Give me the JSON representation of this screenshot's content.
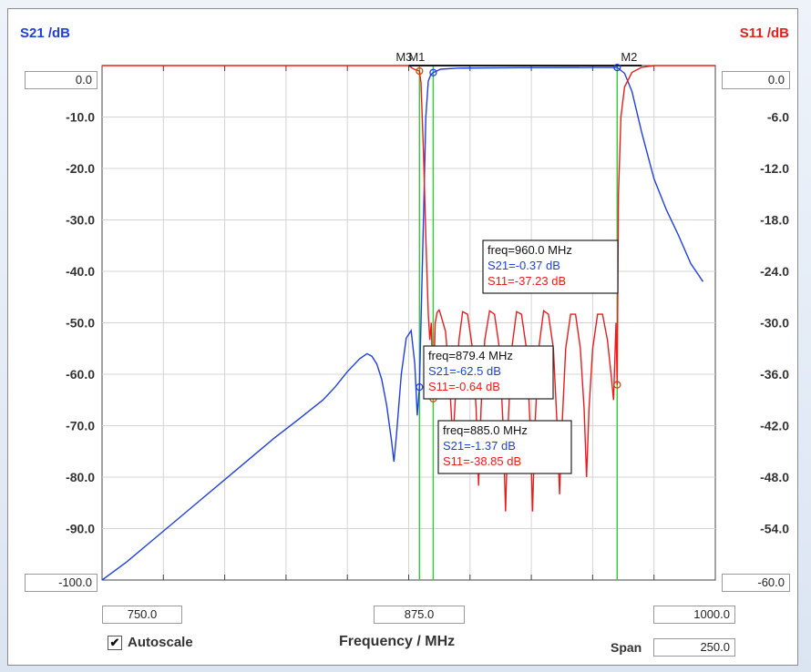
{
  "chart_data": {
    "type": "line",
    "x_axis": {
      "label": "Frequency / MHz",
      "xlim": [
        750.0,
        1000.0
      ],
      "start_value": "750.0",
      "center_value": "875.0",
      "stop_value": "1000.0",
      "span_label": "Span",
      "span_value": "250.0"
    },
    "left_axis": {
      "title": "S21 /dB",
      "ylim": [
        -100,
        0
      ],
      "top_value": "0.0",
      "bottom_value": "-100.0",
      "tick_labels": [
        "-10.0",
        "-20.0",
        "-30.0",
        "-40.0",
        "-50.0",
        "-60.0",
        "-70.0",
        "-80.0",
        "-90.0"
      ]
    },
    "right_axis": {
      "title": "S11 /dB",
      "ylim": [
        -60,
        0
      ],
      "top_value": "0.0",
      "bottom_value": "-60.0",
      "tick_labels": [
        "-6.0",
        "-12.0",
        "-18.0",
        "-24.0",
        "-30.0",
        "-36.0",
        "-42.0",
        "-48.0",
        "-54.0"
      ]
    },
    "grid": true,
    "series": [
      {
        "name": "S21",
        "color": "#1f3fe6",
        "axis": "left",
        "points": [
          [
            750,
            -100
          ],
          [
            760,
            -96.5
          ],
          [
            770,
            -92.5
          ],
          [
            780,
            -88.5
          ],
          [
            790,
            -84.5
          ],
          [
            800,
            -80.5
          ],
          [
            810,
            -76.5
          ],
          [
            820,
            -72.5
          ],
          [
            830,
            -68.8
          ],
          [
            840,
            -65
          ],
          [
            845,
            -62.5
          ],
          [
            850,
            -59.5
          ],
          [
            855,
            -57
          ],
          [
            858,
            -56
          ],
          [
            860,
            -56.5
          ],
          [
            862,
            -58
          ],
          [
            864,
            -61
          ],
          [
            866,
            -66
          ],
          [
            868,
            -73
          ],
          [
            869,
            -77
          ],
          [
            870,
            -72
          ],
          [
            872,
            -60
          ],
          [
            874,
            -53
          ],
          [
            876,
            -51.5
          ],
          [
            877.5,
            -58
          ],
          [
            878.5,
            -68
          ],
          [
            879.4,
            -62.5
          ],
          [
            880,
            -50
          ],
          [
            881,
            -30
          ],
          [
            882,
            -10
          ],
          [
            883,
            -3
          ],
          [
            884,
            -1.8
          ],
          [
            885,
            -1.37
          ],
          [
            888,
            -0.7
          ],
          [
            895,
            -0.5
          ],
          [
            920,
            -0.4
          ],
          [
            950,
            -0.37
          ],
          [
            960,
            -0.37
          ],
          [
            963,
            -1.5
          ],
          [
            966,
            -5
          ],
          [
            970,
            -13
          ],
          [
            975,
            -22
          ],
          [
            980,
            -28
          ],
          [
            985,
            -33
          ],
          [
            990,
            -38.5
          ],
          [
            995,
            -42
          ]
        ]
      },
      {
        "name": "S11",
        "color": "#ee1b1b",
        "axis": "right",
        "points": [
          [
            750,
            0
          ],
          [
            875,
            0
          ],
          [
            876,
            -0.2
          ],
          [
            877,
            -0.4
          ],
          [
            879.4,
            -0.64
          ],
          [
            880,
            -2
          ],
          [
            881,
            -10
          ],
          [
            882,
            -20
          ],
          [
            883,
            -29
          ],
          [
            883.6,
            -32
          ],
          [
            884.2,
            -30
          ],
          [
            885,
            -38.85
          ],
          [
            885.8,
            -30
          ],
          [
            886.6,
            -28.8
          ],
          [
            887.4,
            -28.5
          ],
          [
            888,
            -29
          ],
          [
            890,
            -31
          ],
          [
            891.5,
            -36
          ],
          [
            893,
            -44
          ],
          [
            894,
            -39
          ],
          [
            895.5,
            -32
          ],
          [
            897,
            -28.7
          ],
          [
            899,
            -29
          ],
          [
            901,
            -33
          ],
          [
            902.5,
            -40
          ],
          [
            903.5,
            -49
          ],
          [
            904.5,
            -40
          ],
          [
            906,
            -32
          ],
          [
            908,
            -28.6
          ],
          [
            910,
            -29
          ],
          [
            912,
            -33
          ],
          [
            913.5,
            -42
          ],
          [
            914.5,
            -52
          ],
          [
            915.5,
            -42
          ],
          [
            917,
            -33
          ],
          [
            919,
            -28.7
          ],
          [
            921,
            -29
          ],
          [
            923,
            -33
          ],
          [
            924.5,
            -42
          ],
          [
            925.5,
            -52
          ],
          [
            926.5,
            -42
          ],
          [
            928,
            -33
          ],
          [
            930,
            -28.6
          ],
          [
            932,
            -29
          ],
          [
            934,
            -33
          ],
          [
            935.5,
            -42
          ],
          [
            936.5,
            -50
          ],
          [
            937.5,
            -42
          ],
          [
            939,
            -33
          ],
          [
            941,
            -29
          ],
          [
            943,
            -29
          ],
          [
            945,
            -33
          ],
          [
            946.5,
            -40
          ],
          [
            947.5,
            -48
          ],
          [
            948.5,
            -40
          ],
          [
            950,
            -33
          ],
          [
            952,
            -29
          ],
          [
            954,
            -29
          ],
          [
            956,
            -32
          ],
          [
            957.5,
            -36
          ],
          [
            958.5,
            -39
          ],
          [
            959.5,
            -30
          ],
          [
            960,
            -37.23
          ],
          [
            960.5,
            -15
          ],
          [
            961.5,
            -6
          ],
          [
            963,
            -2.5
          ],
          [
            966,
            -0.8
          ],
          [
            970,
            -0.2
          ],
          [
            975,
            0
          ],
          [
            1000,
            0
          ]
        ]
      }
    ],
    "markers": [
      {
        "label": "M1",
        "freq": 879.4,
        "s21": -62.5,
        "s11": -0.64
      },
      {
        "label": "M3",
        "freq": 885.0,
        "s21": -1.37,
        "s11": -38.85
      },
      {
        "label": "M2",
        "freq": 960.0,
        "s21": -0.37,
        "s11": -37.23
      }
    ],
    "marker_header_labels": [
      "M3",
      "M1",
      "M2"
    ],
    "annotations": [
      {
        "freq_text": "freq=960.0 MHz",
        "s21_text": "S21=-0.37 dB",
        "s11_text": "S11=-37.23 dB"
      },
      {
        "freq_text": "freq=879.4 MHz",
        "s21_text": "S21=-62.5 dB",
        "s11_text": "S11=-0.64 dB"
      },
      {
        "freq_text": "freq=885.0 MHz",
        "s21_text": "S21=-1.37 dB",
        "s11_text": "S11=-38.85 dB"
      }
    ],
    "colors": {
      "s21": "#1f3fe6",
      "s11": "#ee1b1b",
      "marker_line": "#3cc83c",
      "grid": "#d4d4d4"
    }
  },
  "controls": {
    "autoscale_label": "Autoscale",
    "autoscale_checked": true,
    "check_glyph": "✔"
  }
}
